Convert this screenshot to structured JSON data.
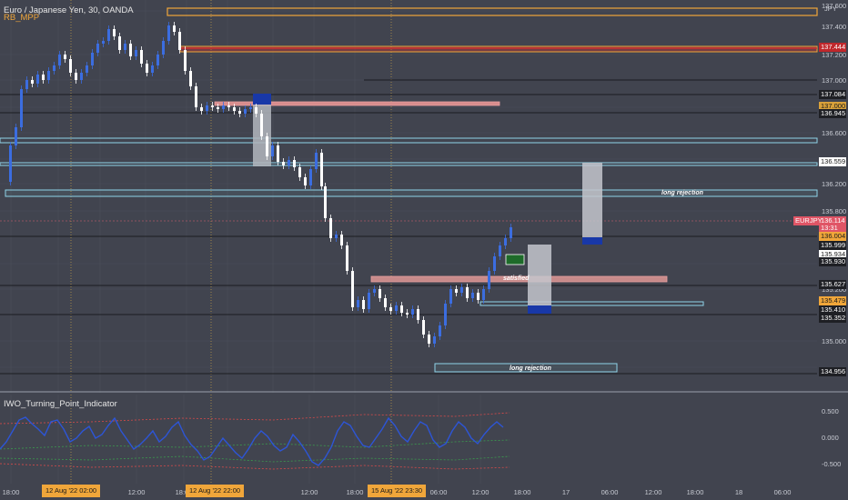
{
  "header": {
    "title": "Euro / Japanese Yen, 30, OANDA",
    "indicator_name": "RB_MPP",
    "currency": "JPY"
  },
  "oscillator": {
    "title": "IWO_Turning_Point_Indicator",
    "ticks": [
      "0.500",
      "0.000",
      "-0.500"
    ]
  },
  "price_axis": {
    "ticks": [
      "137.600",
      "137.400",
      "137.200",
      "137.000",
      "136.800",
      "136.600",
      "136.400",
      "136.200",
      "135.800",
      "135.600",
      "135.200",
      "135.000"
    ],
    "tags": [
      {
        "text": "137.444",
        "bg": "#c0282c",
        "fg": "#ffffff"
      },
      {
        "text": "137.084",
        "bg": "#1e1f24",
        "fg": "#ffffff"
      },
      {
        "text": "137.000",
        "bg": "#d9a13a",
        "fg": "#1a1a1a"
      },
      {
        "text": "136.945",
        "bg": "#1e1f24",
        "fg": "#ffffff"
      },
      {
        "text": "136.559",
        "bg": "#ffffff",
        "fg": "#1a1a1a"
      },
      {
        "text": "136.114",
        "bg": "#e05566",
        "fg": "#ffffff"
      },
      {
        "text": "13:31",
        "bg": "#e05566",
        "fg": "#ffffff"
      },
      {
        "text": "136.004",
        "bg": "#f0a63a",
        "fg": "#1a1a1a"
      },
      {
        "text": "135.999",
        "bg": "#1e1f24",
        "fg": "#ffffff"
      },
      {
        "text": "135.934",
        "bg": "#ffffff",
        "fg": "#1a1a1a"
      },
      {
        "text": "135.930",
        "bg": "#1e1f24",
        "fg": "#ffffff"
      },
      {
        "text": "135.627",
        "bg": "#1e1f24",
        "fg": "#ffffff"
      },
      {
        "text": "135.479",
        "bg": "#f0a63a",
        "fg": "#1a1a1a"
      },
      {
        "text": "135.410",
        "bg": "#1e1f24",
        "fg": "#ffffff"
      },
      {
        "text": "135.352",
        "bg": "#1e1f24",
        "fg": "#ffffff"
      },
      {
        "text": "134.956",
        "bg": "#1e1f24",
        "fg": "#ffffff"
      }
    ],
    "symbol_tag": {
      "text": "EURJPY",
      "bg": "#e05566",
      "fg": "#ffffff"
    }
  },
  "time_axis": {
    "ticks": [
      "18:00",
      "06:00",
      "12:00",
      "18:00",
      "12:00",
      "18:00",
      "06:00",
      "12:00",
      "18:00",
      "17",
      "06:00",
      "12:00",
      "18:00",
      "18",
      "06:00"
    ],
    "highlights": [
      "12 Aug '22  02:00",
      "12 Aug '22  22:00",
      "15 Aug '22  23:30"
    ]
  },
  "annotations": {
    "long_rejection_1": "long rejection",
    "long_rejection_2": "long rejection",
    "satisfied": "satisfied"
  },
  "colors": {
    "background": "#41444f",
    "grid": "#4b4f5b",
    "candle_up": "#3b6de0",
    "candle_down": "#ffffff",
    "orange": "#f0a63a",
    "red": "#d03030",
    "cyan": "#8fd3e8",
    "blue_block": "#1838a8",
    "osc_line": "#2d55d6"
  }
}
